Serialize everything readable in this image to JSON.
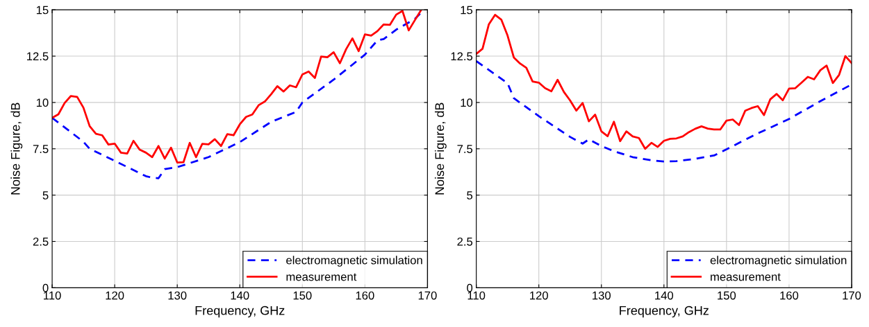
{
  "chart_data": [
    {
      "type": "line",
      "xlabel": "Frequency, GHz",
      "ylabel": "Noise Figure, dB",
      "xlim": [
        110,
        170
      ],
      "xticks": [
        110,
        120,
        130,
        140,
        150,
        160,
        170
      ],
      "ylim": [
        0,
        15
      ],
      "yticks": [
        0,
        2.5,
        5,
        7.5,
        10,
        12.5,
        15
      ],
      "grid": true,
      "legend": "bottom right",
      "series": [
        {
          "name": "electromagnetic simulation",
          "color": "#0000ff",
          "line_style": "dashed",
          "x": [
            110,
            115,
            116,
            120,
            125,
            126,
            127,
            128,
            130,
            135,
            140,
            145,
            149,
            150,
            155,
            160,
            162,
            163,
            165,
            168,
            169
          ],
          "values": [
            9.17,
            7.88,
            7.5,
            6.85,
            6.02,
            5.94,
            5.91,
            6.4,
            6.51,
            7.05,
            7.86,
            8.95,
            9.49,
            10.0,
            11.23,
            12.58,
            13.35,
            13.42,
            13.93,
            14.51,
            14.86
          ]
        },
        {
          "name": "measurement",
          "color": "#ff0000",
          "line_style": "solid",
          "x": [
            110,
            111,
            112,
            113,
            114,
            115,
            116,
            117,
            118,
            119,
            120,
            121,
            122,
            123,
            124,
            125,
            126,
            127,
            128,
            129,
            130,
            131,
            132,
            133,
            134,
            135,
            136,
            137,
            138,
            139,
            140,
            141,
            142,
            143,
            144,
            145,
            146,
            147,
            148,
            149,
            150,
            151,
            152,
            153,
            154,
            155,
            156,
            157,
            158,
            159,
            160,
            161,
            162,
            163,
            164,
            165,
            166,
            167,
            168,
            169
          ],
          "values": [
            9.17,
            9.36,
            9.97,
            10.35,
            10.3,
            9.72,
            8.72,
            8.31,
            8.23,
            7.73,
            7.78,
            7.29,
            7.24,
            7.93,
            7.45,
            7.29,
            7.05,
            7.65,
            6.97,
            7.56,
            6.76,
            6.78,
            7.82,
            7.05,
            7.77,
            7.74,
            8.02,
            7.65,
            8.29,
            8.23,
            8.82,
            9.22,
            9.35,
            9.85,
            10.05,
            10.44,
            10.88,
            10.59,
            10.92,
            10.82,
            11.51,
            11.67,
            11.32,
            12.48,
            12.44,
            12.71,
            12.12,
            12.88,
            13.46,
            12.77,
            13.67,
            13.61,
            13.85,
            14.21,
            14.19,
            14.74,
            14.94,
            13.89,
            14.45,
            15.0
          ]
        }
      ]
    },
    {
      "type": "line",
      "xlabel": "Frequency, GHz",
      "ylabel": "Noise Figure, dB",
      "xlim": [
        110,
        170
      ],
      "xticks": [
        110,
        120,
        130,
        140,
        150,
        160,
        170
      ],
      "ylim": [
        0,
        15
      ],
      "yticks": [
        0,
        2.5,
        5,
        7.5,
        10,
        12.5,
        15
      ],
      "grid": true,
      "legend": "bottom right",
      "series": [
        {
          "name": "electromagnetic simulation",
          "color": "#0000ff",
          "line_style": "dashed",
          "x": [
            110,
            115,
            116,
            120,
            125,
            127,
            128,
            130,
            132,
            135,
            138,
            140,
            142,
            145,
            148,
            150,
            152,
            155,
            160,
            165,
            170
          ],
          "values": [
            12.23,
            11.04,
            10.23,
            9.26,
            8.14,
            7.78,
            8.01,
            7.65,
            7.37,
            7.05,
            6.88,
            6.81,
            6.83,
            6.96,
            7.14,
            7.47,
            7.82,
            8.33,
            9.11,
            10.07,
            10.97
          ]
        },
        {
          "name": "measurement",
          "color": "#ff0000",
          "line_style": "solid",
          "x": [
            110,
            111,
            112,
            113,
            114,
            115,
            116,
            117,
            118,
            119,
            120,
            121,
            122,
            123,
            124,
            125,
            126,
            127,
            128,
            129,
            130,
            131,
            132,
            133,
            134,
            135,
            136,
            137,
            138,
            139,
            140,
            141,
            142,
            143,
            144,
            145,
            146,
            147,
            148,
            149,
            150,
            151,
            152,
            153,
            154,
            155,
            156,
            157,
            158,
            159,
            160,
            161,
            162,
            163,
            164,
            165,
            166,
            167,
            168,
            169,
            170
          ],
          "values": [
            12.62,
            12.9,
            14.21,
            14.73,
            14.47,
            13.61,
            12.43,
            12.1,
            11.87,
            11.13,
            11.07,
            10.77,
            10.6,
            11.22,
            10.57,
            10.11,
            9.56,
            9.97,
            8.98,
            9.34,
            8.44,
            8.18,
            8.96,
            7.91,
            8.44,
            8.17,
            8.08,
            7.5,
            7.82,
            7.6,
            7.93,
            8.04,
            8.06,
            8.17,
            8.4,
            8.58,
            8.71,
            8.59,
            8.54,
            8.54,
            9.02,
            9.08,
            8.78,
            9.56,
            9.7,
            9.8,
            9.32,
            10.17,
            10.46,
            10.12,
            10.75,
            10.77,
            11.07,
            11.38,
            11.25,
            11.74,
            11.99,
            11.05,
            11.49,
            12.5,
            12.13
          ]
        }
      ]
    }
  ]
}
